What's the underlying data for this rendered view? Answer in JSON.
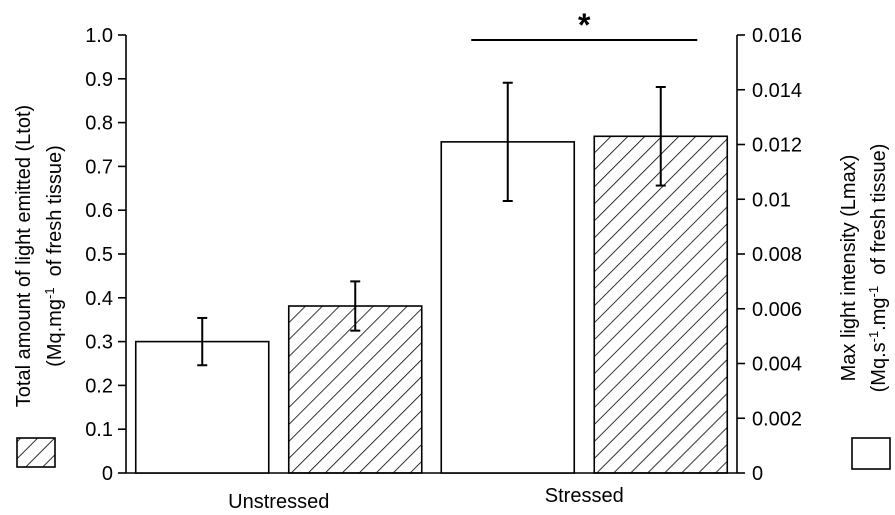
{
  "chart_data": {
    "type": "bar",
    "categories": [
      "Unstressed",
      "Stressed"
    ],
    "series": [
      {
        "axis": "left",
        "fill": "white",
        "values": [
          0.3,
          0.756
        ],
        "error": [
          0.054,
          0.135
        ]
      },
      {
        "axis": "right",
        "fill": "hatched",
        "values": [
          0.0061,
          0.0123
        ],
        "error": [
          0.0009,
          0.0018
        ]
      }
    ],
    "left_axis": {
      "ylim": [
        0,
        1.0
      ],
      "ticks": [
        "0",
        "0.1",
        "0.2",
        "0.3",
        "0.4",
        "0.5",
        "0.6",
        "0.7",
        "0.8",
        "0.9",
        "1.0"
      ],
      "label_line1": "Total amount of light emitted (Ltot)",
      "label_line2_pre": "(Mq.mg",
      "label_line2_sup": "-1",
      "label_line2_post": "  of fresh tissue)"
    },
    "right_axis": {
      "ylim": [
        0,
        0.016
      ],
      "ticks": [
        "0",
        "0.002",
        "0.004",
        "0.006",
        "0.008",
        "0.01",
        "0.012",
        "0.014",
        "0.016"
      ],
      "label_line1": "Max light intensity (Lmax)",
      "label_line2_pre": "(Mq.s",
      "label_line2_sup1": "-1",
      "label_line2_mid": ".mg",
      "label_line2_sup2": "-1",
      "label_line2_post": "  of fresh tissue)"
    },
    "significance": {
      "marker": "*",
      "category": "Stressed"
    },
    "grid": false,
    "legend": "axis-labels"
  }
}
